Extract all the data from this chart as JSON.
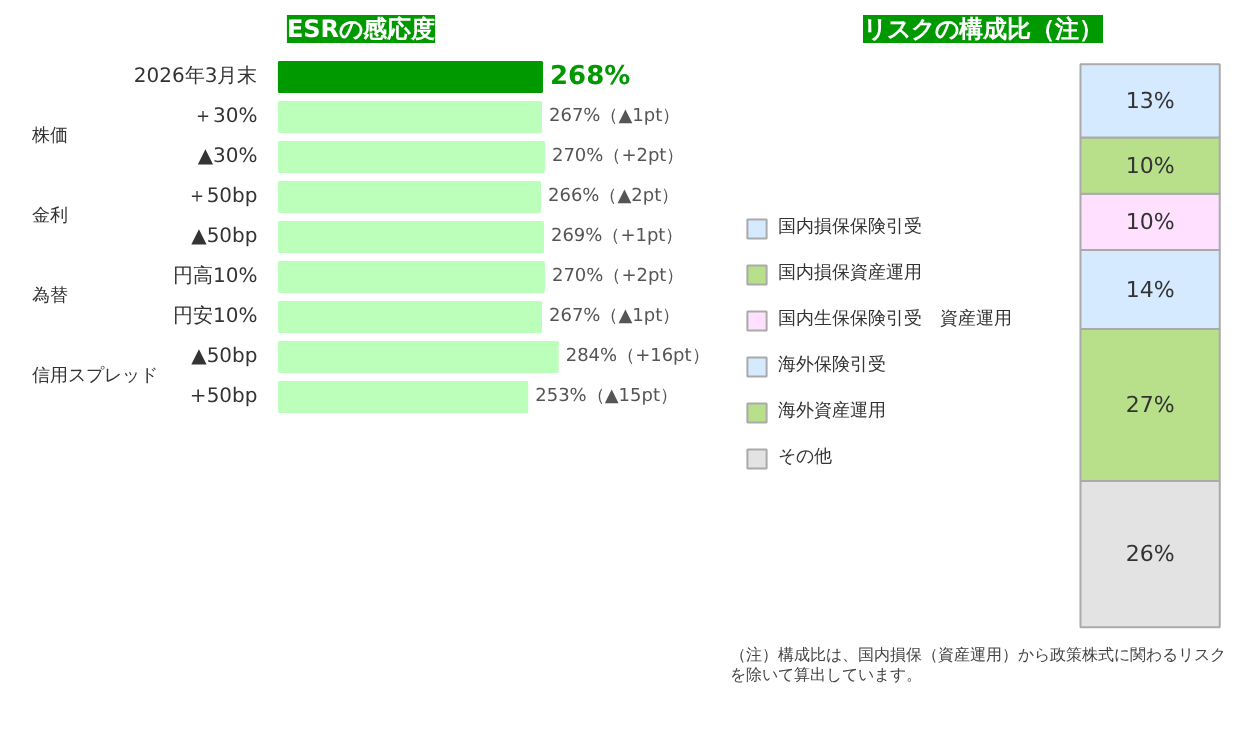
{
  "chart_data": [
    {
      "type": "bar",
      "orientation": "horizontal",
      "title": "ESRの感応度",
      "categories": [
        "2026年3月末",
        "＋30%",
        "▲30%",
        "＋50bp",
        "▲50bp",
        "円高10%",
        "円安10%",
        "▲50bp",
        "+50bp"
      ],
      "values": [
        268,
        267,
        270,
        266,
        269,
        270,
        267,
        284,
        253
      ],
      "colors": [
        "#009900",
        "#bbffbb",
        "#bbffbb",
        "#bbffbb",
        "#bbffbb",
        "#bbffbb",
        "#bbffbb",
        "#bbffbb",
        "#bbffbb"
      ],
      "value_labels": [
        "268%",
        "267%（▲1pt）",
        "270%（+2pt）",
        "266%（▲2pt）",
        "269%（+1pt）",
        "270%（+2pt）",
        "267%（▲1pt）",
        "284%（+16pt）",
        "253%（▲15pt）"
      ],
      "annotations": [
        "株価",
        "金利",
        "為替",
        "信用スプレッド"
      ],
      "tick_labels": "y",
      "grid": false
    },
    {
      "type": "bar",
      "stacked": true,
      "title": "リスクの構成比（注）",
      "categories": [
        null
      ],
      "series": [
        {
          "name": "その他",
          "color": "#e3e3e3",
          "values": [
            26
          ],
          "value_labels": [
            "26%"
          ]
        },
        {
          "name": "海外資産運用",
          "color": "#b8e08a",
          "values": [
            27
          ],
          "value_labels": [
            "27%"
          ]
        },
        {
          "name": "海外保険引受",
          "color": "#d6eaff",
          "values": [
            14
          ],
          "value_labels": [
            "14%"
          ]
        },
        {
          "name": "国内生保保険引受　資産運用",
          "color": "#ffe0ff",
          "values": [
            10
          ],
          "value_labels": [
            "10%"
          ]
        },
        {
          "name": "国内損保資産運用",
          "color": "#b8e08a",
          "values": [
            10
          ],
          "value_labels": [
            "10%"
          ]
        },
        {
          "name": "国内損保保険引受",
          "color": "#d6eaff",
          "values": [
            13
          ],
          "value_labels": [
            "13%"
          ]
        }
      ],
      "annotations": [
        "（注）構成比は、国内損保（資産運用）から政策株式に関わるリスクを除いて算出しています。"
      ],
      "tick_labels": false,
      "grid": false,
      "legend": "left"
    }
  ]
}
